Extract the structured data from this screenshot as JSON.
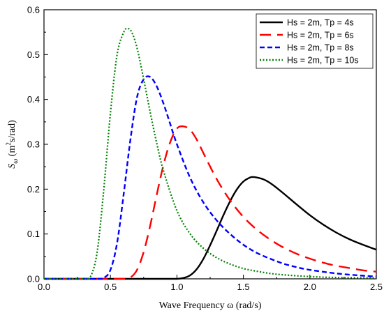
{
  "chart_data": {
    "type": "line",
    "title": "",
    "xlabel": "Wave Frequency ω (rad/s)",
    "ylabel_parts": {
      "var": "S",
      "sub": "ω",
      "unit_open": " (m",
      "unit_sup": "2",
      "unit_close": "s/rad)"
    },
    "xlim": [
      0.0,
      2.5
    ],
    "ylim": [
      0.0,
      0.6
    ],
    "xticks": [
      0.0,
      0.5,
      1.0,
      1.5,
      2.0,
      2.5
    ],
    "xtick_labels": [
      "0.0",
      "0.5",
      "1.0",
      "1.5",
      "2.0",
      "2.5"
    ],
    "yticks": [
      0.0,
      0.1,
      0.2,
      0.3,
      0.4,
      0.5,
      0.6
    ],
    "ytick_labels": [
      "0.0",
      "0.1",
      "0.2",
      "0.3",
      "0.4",
      "0.5",
      "0.6"
    ],
    "grid": false,
    "legend_position": "top-right",
    "series": [
      {
        "name": "Hs = 2m, Tp = 4s",
        "color": "#000000",
        "line_style": "solid",
        "x": [
          0.0,
          0.7,
          0.8,
          0.9,
          1.0,
          1.05,
          1.1,
          1.15,
          1.2,
          1.25,
          1.3,
          1.35,
          1.4,
          1.45,
          1.5,
          1.55,
          1.57,
          1.6,
          1.65,
          1.7,
          1.75,
          1.8,
          1.9,
          2.0,
          2.1,
          2.2,
          2.3,
          2.4,
          2.5
        ],
        "y": [
          0.0,
          0.0,
          0.0,
          0.0,
          0.0,
          0.002,
          0.008,
          0.022,
          0.045,
          0.075,
          0.108,
          0.142,
          0.173,
          0.199,
          0.217,
          0.226,
          0.227,
          0.226,
          0.222,
          0.214,
          0.203,
          0.191,
          0.166,
          0.142,
          0.121,
          0.103,
          0.088,
          0.076,
          0.065
        ]
      },
      {
        "name": "Hs = 2m, Tp = 6s",
        "color": "#ff0000",
        "line_style": "dashed",
        "x": [
          0.0,
          0.5,
          0.6,
          0.65,
          0.7,
          0.75,
          0.8,
          0.85,
          0.9,
          0.95,
          1.0,
          1.05,
          1.1,
          1.15,
          1.2,
          1.3,
          1.4,
          1.5,
          1.6,
          1.7,
          1.8,
          1.9,
          2.0,
          2.1,
          2.2,
          2.3,
          2.4,
          2.5
        ],
        "y": [
          0.0,
          0.0,
          0.0,
          0.003,
          0.02,
          0.06,
          0.12,
          0.19,
          0.255,
          0.305,
          0.335,
          0.34,
          0.332,
          0.31,
          0.28,
          0.222,
          0.175,
          0.138,
          0.11,
          0.088,
          0.07,
          0.056,
          0.045,
          0.036,
          0.029,
          0.024,
          0.019,
          0.016
        ]
      },
      {
        "name": "Hs = 2m, Tp = 8s",
        "color": "#0000ff",
        "line_style": "short-dashed",
        "x": [
          0.0,
          0.4,
          0.45,
          0.5,
          0.55,
          0.6,
          0.65,
          0.7,
          0.75,
          0.8,
          0.85,
          0.9,
          0.95,
          1.0,
          1.1,
          1.2,
          1.3,
          1.4,
          1.5,
          1.6,
          1.7,
          1.8,
          1.9,
          2.0,
          2.2,
          2.4,
          2.5
        ],
        "y": [
          0.0,
          0.0,
          0.002,
          0.02,
          0.08,
          0.19,
          0.31,
          0.405,
          0.445,
          0.45,
          0.428,
          0.39,
          0.345,
          0.3,
          0.225,
          0.17,
          0.13,
          0.1,
          0.076,
          0.058,
          0.045,
          0.034,
          0.026,
          0.02,
          0.012,
          0.007,
          0.005
        ]
      },
      {
        "name": "Hs = 2m, Tp = 10s",
        "color": "#008000",
        "line_style": "dotted",
        "x": [
          0.0,
          0.3,
          0.35,
          0.4,
          0.45,
          0.5,
          0.55,
          0.6,
          0.63,
          0.66,
          0.7,
          0.75,
          0.8,
          0.85,
          0.9,
          1.0,
          1.1,
          1.2,
          1.3,
          1.4,
          1.5,
          1.6,
          1.7,
          1.8,
          2.0,
          2.2,
          2.5
        ],
        "y": [
          0.0,
          0.0,
          0.005,
          0.06,
          0.2,
          0.37,
          0.5,
          0.55,
          0.558,
          0.55,
          0.515,
          0.445,
          0.37,
          0.3,
          0.24,
          0.152,
          0.1,
          0.068,
          0.047,
          0.033,
          0.023,
          0.017,
          0.012,
          0.009,
          0.005,
          0.003,
          0.002
        ]
      }
    ]
  }
}
